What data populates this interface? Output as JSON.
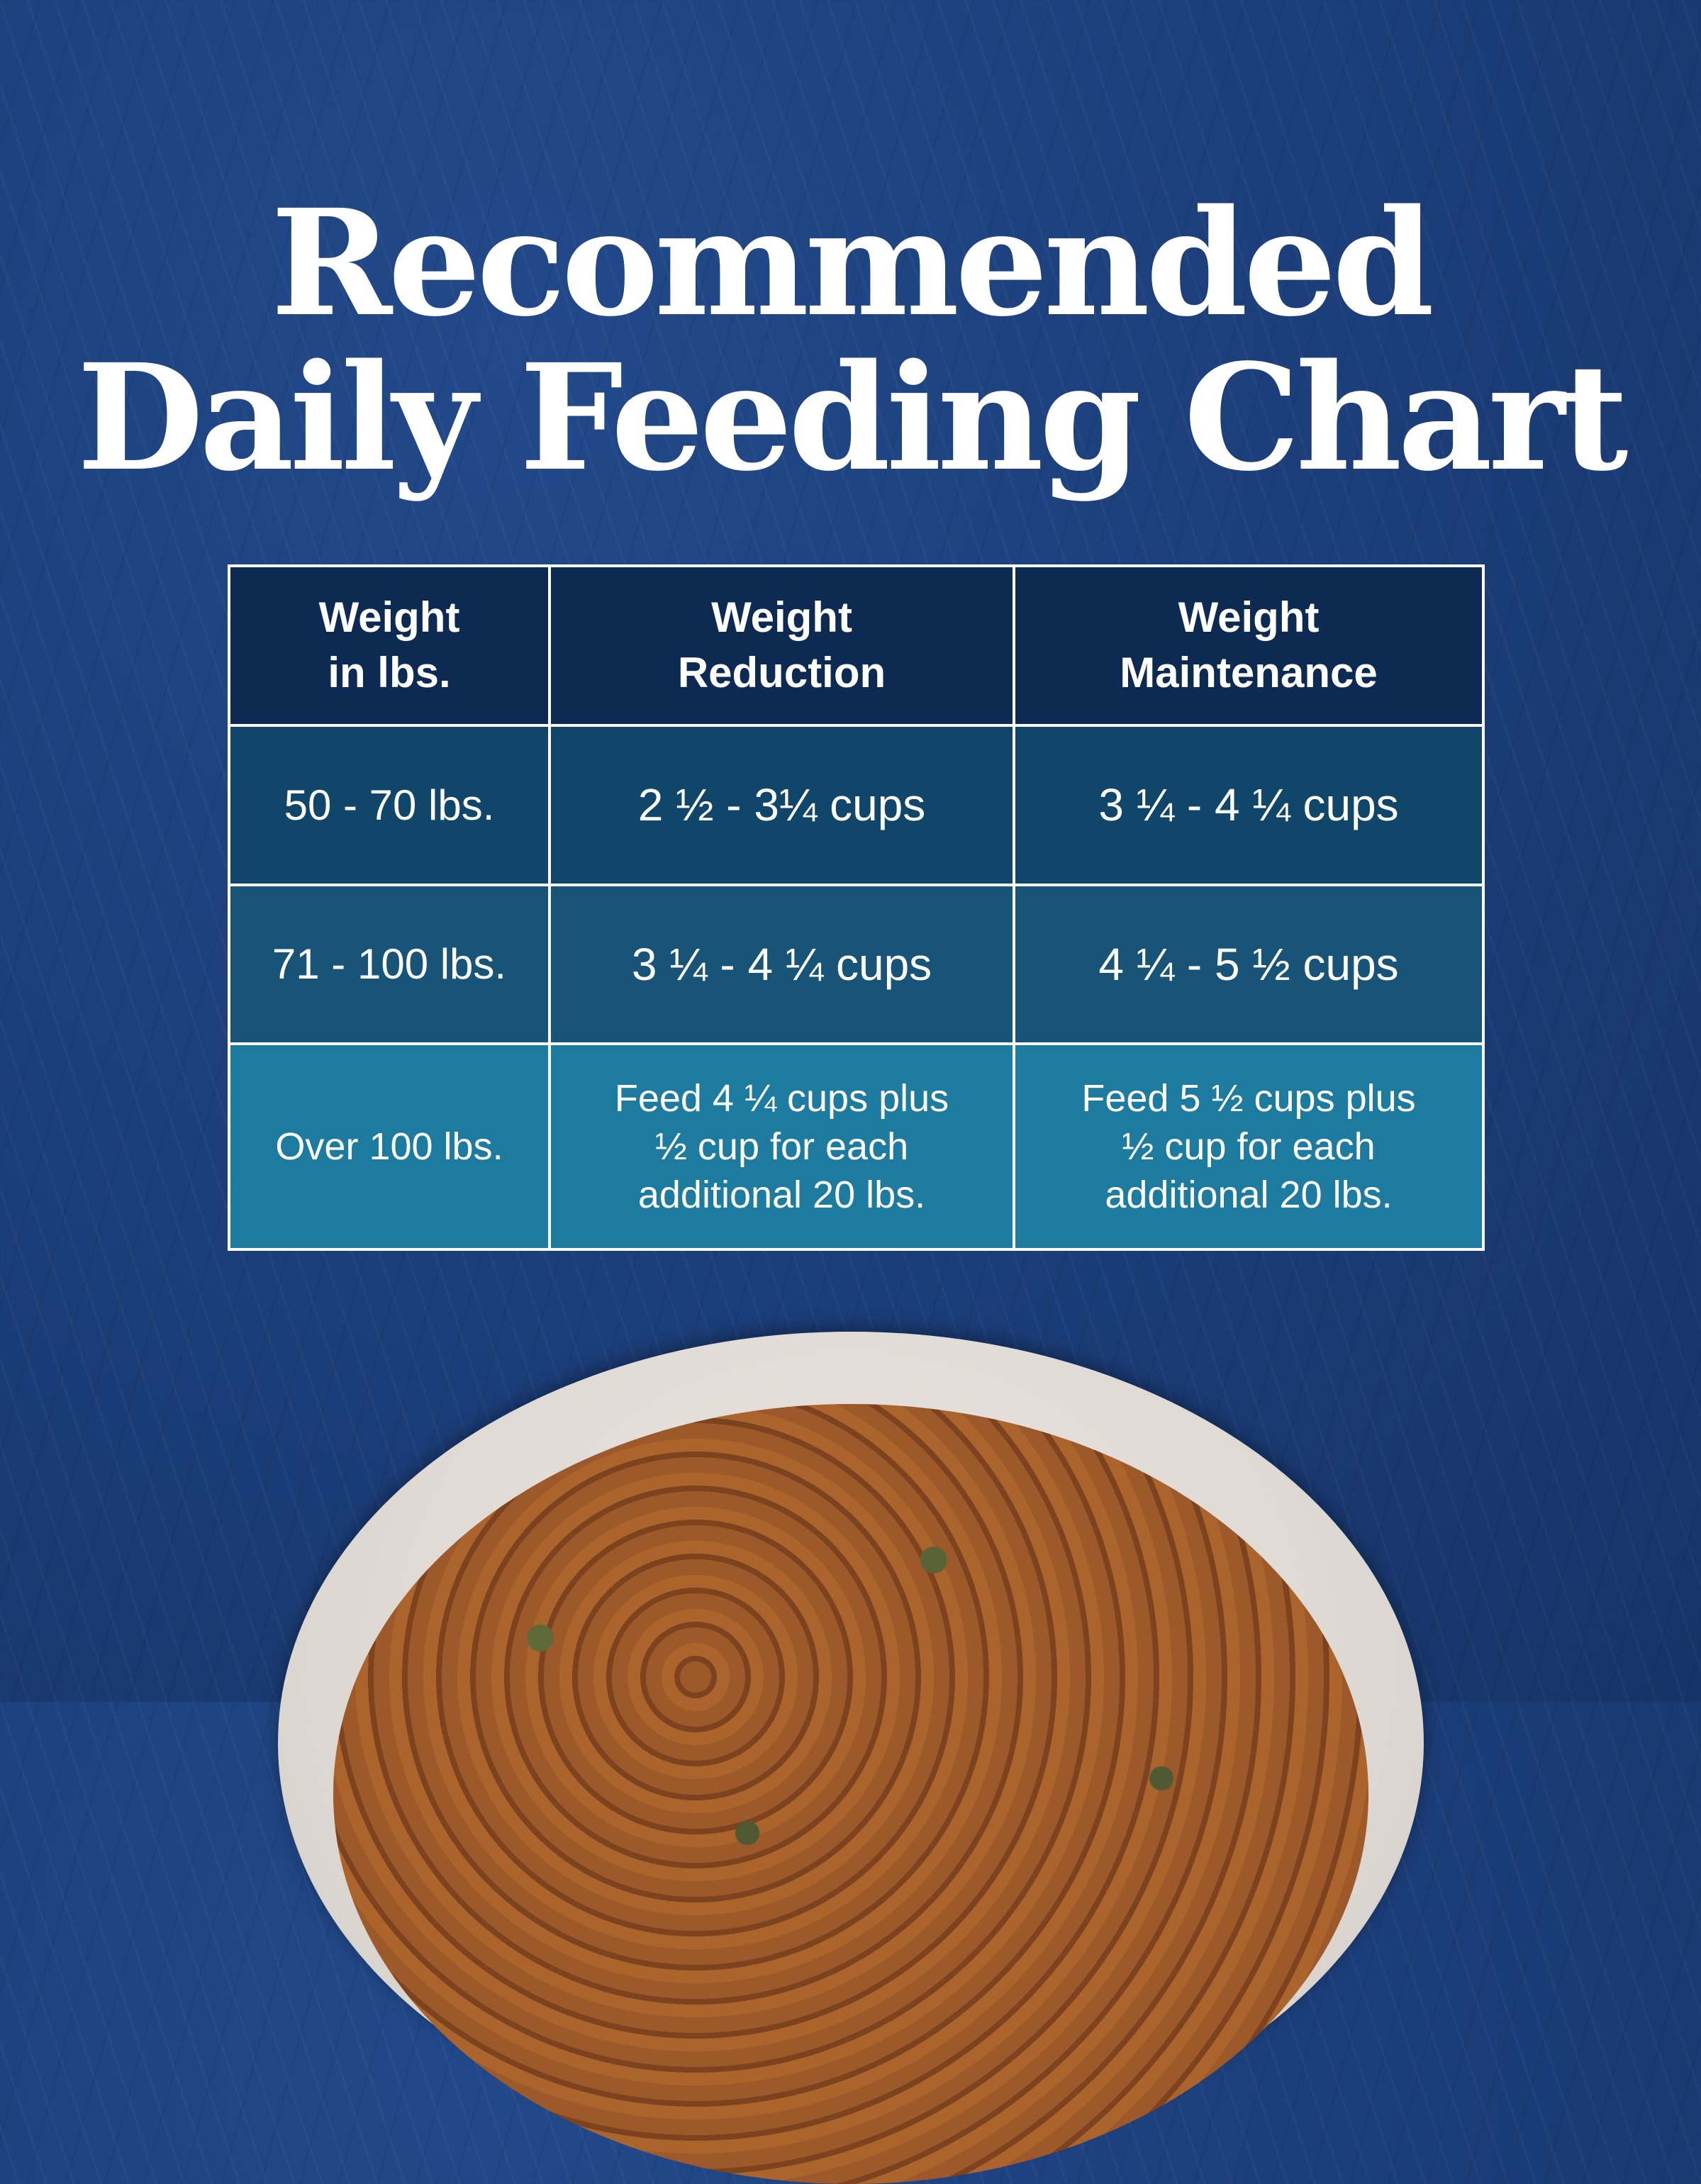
{
  "title": {
    "line1": "Recommended",
    "line2": "Daily Feeding Chart"
  },
  "colors": {
    "background": "#1b3d78",
    "header_row": "#0d2a53",
    "row1": "#11466b",
    "row2": "#175477",
    "row3": "#1c7b9e",
    "text": "#ffffff"
  },
  "chart_data": {
    "type": "table",
    "title": "Recommended Daily Feeding Chart",
    "columns": [
      "Weight in lbs.",
      "Weight Reduction",
      "Weight Maintenance"
    ],
    "rows": [
      [
        "50 - 70 lbs.",
        "2 ½ - 3¼ cups",
        "3 ¼ - 4 ¼ cups"
      ],
      [
        "71 - 100 lbs.",
        "3 ¼ - 4 ¼ cups",
        "4 ¼ - 5 ½ cups"
      ],
      [
        "Over 100 lbs.",
        "Feed 4 ¼ cups plus ½ cup for each additional 20 lbs.",
        "Feed 5 ½ cups plus ½ cup for each additional 20 lbs."
      ]
    ]
  },
  "table": {
    "headers": [
      {
        "line1": "Weight",
        "line2": "in lbs."
      },
      {
        "line1": "Weight",
        "line2": "Reduction"
      },
      {
        "line1": "Weight",
        "line2": "Maintenance"
      }
    ],
    "rows": [
      {
        "weight": "50 - 70 lbs.",
        "reduction": "2 ½ - 3¼ cups",
        "maintenance": "3 ¼ - 4 ¼ cups"
      },
      {
        "weight": "71 - 100 lbs.",
        "reduction": "3 ¼ - 4 ¼ cups",
        "maintenance": "4 ¼ - 5 ½ cups"
      },
      {
        "weight": "Over 100 lbs.",
        "reduction": {
          "line1": "Feed 4 ¼ cups plus",
          "line2": "½ cup for each",
          "line3": "additional 20 lbs."
        },
        "maintenance": {
          "line1": "Feed 5 ½ cups plus",
          "line2": "½ cup for each",
          "line3": "additional 20 lbs."
        }
      }
    ]
  },
  "image": {
    "bowl": "bowl-of-dry-dog-food"
  }
}
